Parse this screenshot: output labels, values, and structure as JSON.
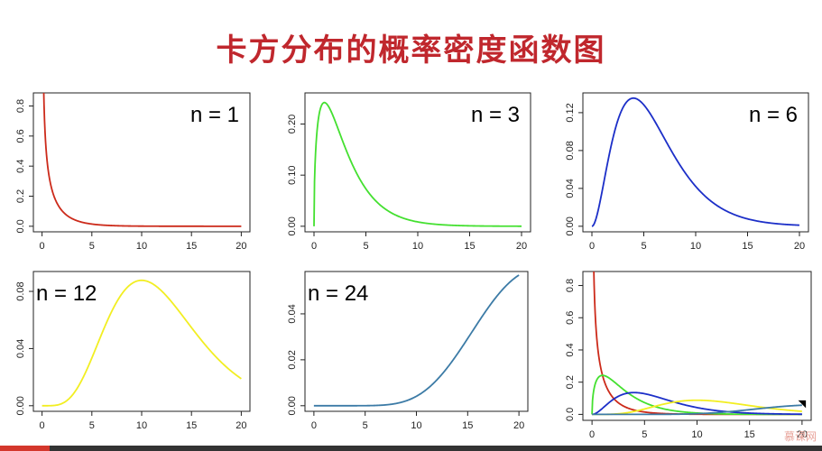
{
  "page": {
    "title": "卡方分布的概率密度函数图",
    "watermark": "慕课网"
  },
  "chart_data": [
    {
      "type": "line",
      "df": 1,
      "label": "n = 1",
      "color": "#cc2a1a",
      "xlim": [
        0,
        20
      ],
      "ylim": [
        0,
        0.85
      ],
      "xticks": [
        0,
        5,
        10,
        15,
        20
      ],
      "yticks": [
        0.0,
        0.2,
        0.4,
        0.6,
        0.8
      ],
      "ytick_labels": [
        "0.0",
        "0.2",
        "0.4",
        "0.6",
        "0.8"
      ],
      "label_pos": "top-right"
    },
    {
      "type": "line",
      "df": 3,
      "label": "n = 3",
      "color": "#44e030",
      "xlim": [
        0,
        20
      ],
      "ylim": [
        0,
        0.25
      ],
      "xticks": [
        0,
        5,
        10,
        15,
        20
      ],
      "yticks": [
        0.0,
        0.1,
        0.2
      ],
      "ytick_labels": [
        "0.00",
        "0.10",
        "0.20"
      ],
      "label_pos": "top-right"
    },
    {
      "type": "line",
      "df": 6,
      "label": "n = 6",
      "color": "#1c2fc8",
      "xlim": [
        0,
        20
      ],
      "ylim": [
        0,
        0.135
      ],
      "xticks": [
        0,
        5,
        10,
        15,
        20
      ],
      "yticks": [
        0.0,
        0.04,
        0.08,
        0.12
      ],
      "ytick_labels": [
        "0.00",
        "0.04",
        "0.08",
        "0.12"
      ],
      "label_pos": "top-right"
    },
    {
      "type": "line",
      "df": 12,
      "label": "n = 12",
      "color": "#f2ee22",
      "xlim": [
        0,
        20
      ],
      "ylim": [
        0,
        0.09
      ],
      "xticks": [
        0,
        5,
        10,
        15,
        20
      ],
      "yticks": [
        0.0,
        0.04,
        0.08
      ],
      "ytick_labels": [
        "0.00",
        "0.04",
        "0.08"
      ],
      "label_pos": "top-left"
    },
    {
      "type": "line",
      "df": 24,
      "label": "n = 24",
      "color": "#3c7ba6",
      "xlim": [
        0,
        20
      ],
      "ylim": [
        0,
        0.056
      ],
      "xticks": [
        0,
        5,
        10,
        15,
        20
      ],
      "yticks": [
        0.0,
        0.02,
        0.04
      ],
      "ytick_labels": [
        "0.00",
        "0.02",
        "0.04"
      ],
      "label_pos": "top-left"
    },
    {
      "type": "line",
      "df": null,
      "label": "",
      "combined": true,
      "xlim": [
        0,
        20
      ],
      "ylim": [
        0,
        0.85
      ],
      "xticks": [
        0,
        5,
        10,
        15,
        20
      ],
      "yticks": [
        0.0,
        0.2,
        0.4,
        0.6,
        0.8
      ],
      "ytick_labels": [
        "0.0",
        "0.2",
        "0.4",
        "0.6",
        "0.8"
      ],
      "series": [
        {
          "df": 1,
          "color": "#cc2a1a"
        },
        {
          "df": 3,
          "color": "#44e030"
        },
        {
          "df": 6,
          "color": "#1c2fc8"
        },
        {
          "df": 12,
          "color": "#f2ee22"
        },
        {
          "df": 24,
          "color": "#3c7ba6"
        }
      ]
    }
  ],
  "progress": 0.06
}
